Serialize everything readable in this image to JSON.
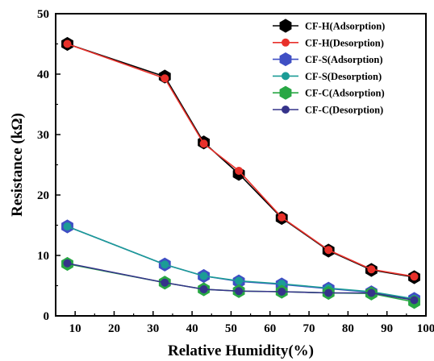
{
  "chart_data": {
    "type": "line",
    "title": "",
    "xlabel": "Relative Humidity(%)",
    "ylabel": "Resistance (kΩ)",
    "xlim": [
      5,
      100
    ],
    "ylim": [
      0,
      50
    ],
    "xticks": [
      10,
      20,
      30,
      40,
      50,
      60,
      70,
      80,
      90,
      100
    ],
    "yticks": [
      0,
      10,
      20,
      30,
      40,
      50
    ],
    "x": [
      8,
      33,
      43,
      52,
      63,
      75,
      86,
      97
    ],
    "legend_position": "top-right",
    "series": [
      {
        "name": "CF-H(Adsorption)",
        "color": "#000000",
        "marker": "hexagon",
        "values": [
          45.0,
          39.6,
          28.7,
          23.5,
          16.2,
          10.8,
          7.6,
          6.4
        ]
      },
      {
        "name": "CF-H(Desorption)",
        "color": "#e8302a",
        "marker": "circle",
        "values": [
          45.0,
          39.3,
          28.5,
          24.0,
          16.3,
          10.9,
          7.7,
          6.5
        ]
      },
      {
        "name": "CF-S(Adsorption)",
        "color": "#3f4fc4",
        "marker": "hexagon",
        "values": [
          14.8,
          8.5,
          6.6,
          5.7,
          5.2,
          4.5,
          3.9,
          2.8
        ]
      },
      {
        "name": "CF-S(Desorption)",
        "color": "#1b9c96",
        "marker": "circle",
        "values": [
          14.8,
          8.5,
          6.6,
          5.8,
          5.3,
          4.6,
          4.0,
          2.8
        ]
      },
      {
        "name": "CF-C(Adsorption)",
        "color": "#28a744",
        "marker": "hexagon",
        "values": [
          8.6,
          5.5,
          4.4,
          4.1,
          4.0,
          3.8,
          3.7,
          2.3
        ]
      },
      {
        "name": "CF-C(Desorption)",
        "color": "#35338a",
        "marker": "circle",
        "values": [
          8.7,
          5.5,
          4.4,
          4.1,
          4.0,
          3.8,
          3.8,
          2.6
        ]
      }
    ]
  }
}
